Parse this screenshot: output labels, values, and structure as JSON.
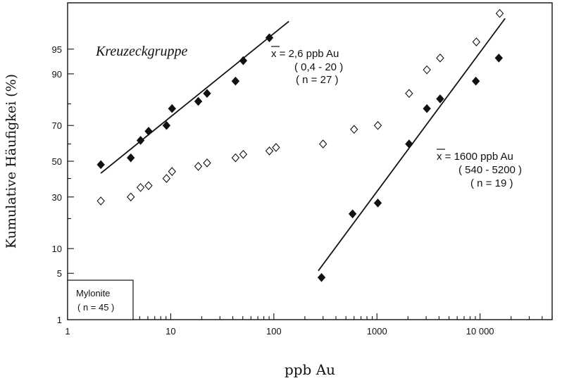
{
  "chart_data": {
    "type": "scatter",
    "xscale": "log",
    "yscale": "probability",
    "xlim": [
      1,
      50000
    ],
    "ylim": [
      1,
      99
    ],
    "xlabel": "ppb Au",
    "ylabel": "Kumulative Häufigkei (%)",
    "xticks": [
      {
        "value": 1,
        "label": "1"
      },
      {
        "value": 10,
        "label": "10"
      },
      {
        "value": 100,
        "label": "100"
      },
      {
        "value": 1000,
        "label": "1000"
      },
      {
        "value": 10000,
        "label": "10 000"
      }
    ],
    "yticks": [
      {
        "value": 1,
        "label": "1"
      },
      {
        "value": 5,
        "label": "5"
      },
      {
        "value": 10,
        "label": "10"
      },
      {
        "value": 30,
        "label": "30"
      },
      {
        "value": 50,
        "label": "50"
      },
      {
        "value": 70,
        "label": "70"
      },
      {
        "value": 90,
        "label": "90"
      },
      {
        "value": 95,
        "label": "95"
      }
    ],
    "series": [
      {
        "name": "Kreuzeckgruppe",
        "marker": "filled-diamond",
        "points": [
          [
            2.1,
            48
          ],
          [
            4.1,
            52
          ],
          [
            5.1,
            62
          ],
          [
            6.1,
            67
          ],
          [
            9.1,
            70
          ],
          [
            10.3,
            78
          ],
          [
            18.5,
            81
          ],
          [
            22.5,
            84
          ],
          [
            42.5,
            88
          ],
          [
            50.5,
            93
          ],
          [
            90.5,
            96.5
          ]
        ],
        "fit": [
          [
            2.1,
            43
          ],
          [
            140,
            98
          ]
        ]
      },
      {
        "name": "",
        "marker": "filled-diamond",
        "points": [
          [
            290,
            4.4
          ],
          [
            580,
            22
          ],
          [
            1020,
            27
          ],
          [
            2050,
            60
          ],
          [
            3050,
            78
          ],
          [
            4100,
            82
          ],
          [
            9100,
            88
          ],
          [
            15200,
            93.5
          ]
        ],
        "fit": [
          [
            270,
            5.4
          ],
          [
            17500,
            98.2
          ]
        ]
      },
      {
        "name": "Mylonite",
        "marker": "open-diamond",
        "points": [
          [
            2.1,
            28
          ],
          [
            4.1,
            30
          ],
          [
            5.1,
            35
          ],
          [
            6.1,
            36
          ],
          [
            9.1,
            40
          ],
          [
            10.3,
            44
          ],
          [
            18.5,
            47
          ],
          [
            22.5,
            49
          ],
          [
            42.5,
            52
          ],
          [
            50.5,
            54
          ],
          [
            90.5,
            56
          ],
          [
            105,
            58
          ],
          [
            300,
            60
          ],
          [
            600,
            68
          ],
          [
            1020,
            70
          ],
          [
            2050,
            84
          ],
          [
            3050,
            91
          ],
          [
            4100,
            93.5
          ],
          [
            9200,
            96
          ],
          [
            15500,
            98.5
          ]
        ]
      }
    ],
    "annotations": {
      "series_title": "Kreuzeckgruppe",
      "upper_mean": "x = 2,6 ppb Au",
      "upper_range": "( 0,4 - 20 )",
      "upper_n": "( n = 27 )",
      "lower_mean": "x = 1600 ppb Au",
      "lower_range": "( 540 - 5200 )",
      "lower_n": "( n = 19 )",
      "box_title": "Mylonite",
      "box_n": "( n = 45 )"
    }
  }
}
